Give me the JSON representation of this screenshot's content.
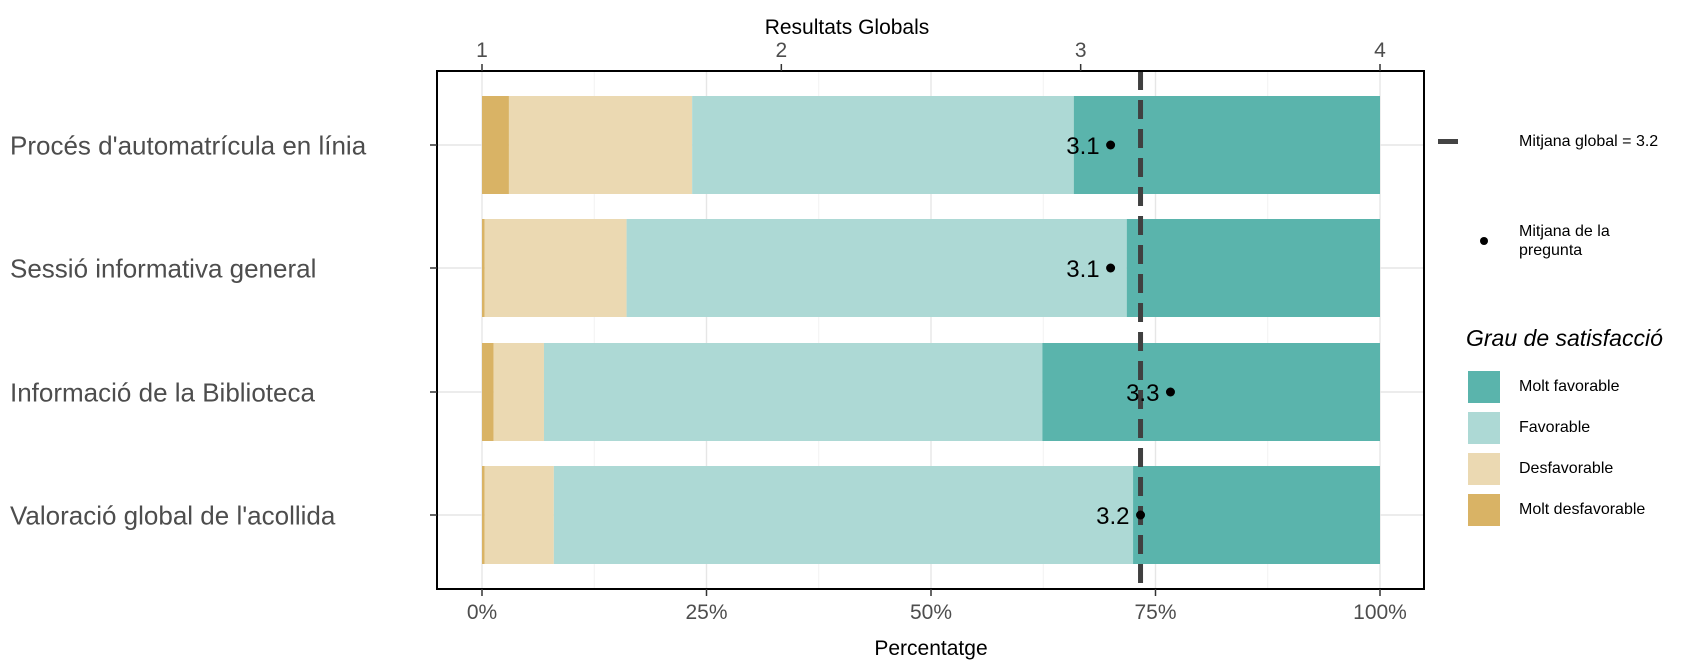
{
  "chart_data": {
    "type": "bar",
    "orientation": "horizontal-stacked",
    "title": "Resultats Globals",
    "xlabel": "Percentatge",
    "x_ticks_bottom": [
      "0%",
      "25%",
      "50%",
      "75%",
      "100%"
    ],
    "x_ticks_top": [
      "1",
      "2",
      "3",
      "4"
    ],
    "xlim": [
      0,
      100
    ],
    "categories": [
      "Procés d'automatrícula en línia",
      "Sessió informativa general",
      "Informació de la Biblioteca",
      "Valoració global de l'acollida"
    ],
    "series": [
      {
        "name": "Molt desfavorable",
        "color": "#d9b365",
        "values": [
          3,
          0.3,
          1.3,
          0.3
        ]
      },
      {
        "name": "Desfavorable",
        "color": "#ebd9b2",
        "values": [
          20.4,
          15.8,
          5.6,
          7.7
        ]
      },
      {
        "name": "Favorable",
        "color": "#add9d5",
        "values": [
          42.5,
          55.7,
          55.5,
          64.5
        ]
      },
      {
        "name": "Molt favorable",
        "color": "#5ab4ac",
        "values": [
          34.1,
          28.2,
          37.6,
          27.5
        ]
      }
    ],
    "question_means": [
      3.1,
      3.1,
      3.3,
      3.2
    ],
    "question_mean_labels": [
      "3.1",
      "3.1",
      "3.3",
      "3.2"
    ],
    "global_mean": 3.2,
    "grid": true,
    "legend_position": "right"
  },
  "legend": {
    "global_mean_label": "Mitjana global =  3.2",
    "question_mean_label_line1": "Mitjana de la",
    "question_mean_label_line2": "pregunta",
    "title": "Grau de satisfacció",
    "items": [
      {
        "label": "Molt favorable",
        "color": "#5ab4ac"
      },
      {
        "label": "Favorable",
        "color": "#add9d5"
      },
      {
        "label": "Desfavorable",
        "color": "#ebd9b2"
      },
      {
        "label": "Molt desfavorable",
        "color": "#d9b365"
      }
    ]
  }
}
